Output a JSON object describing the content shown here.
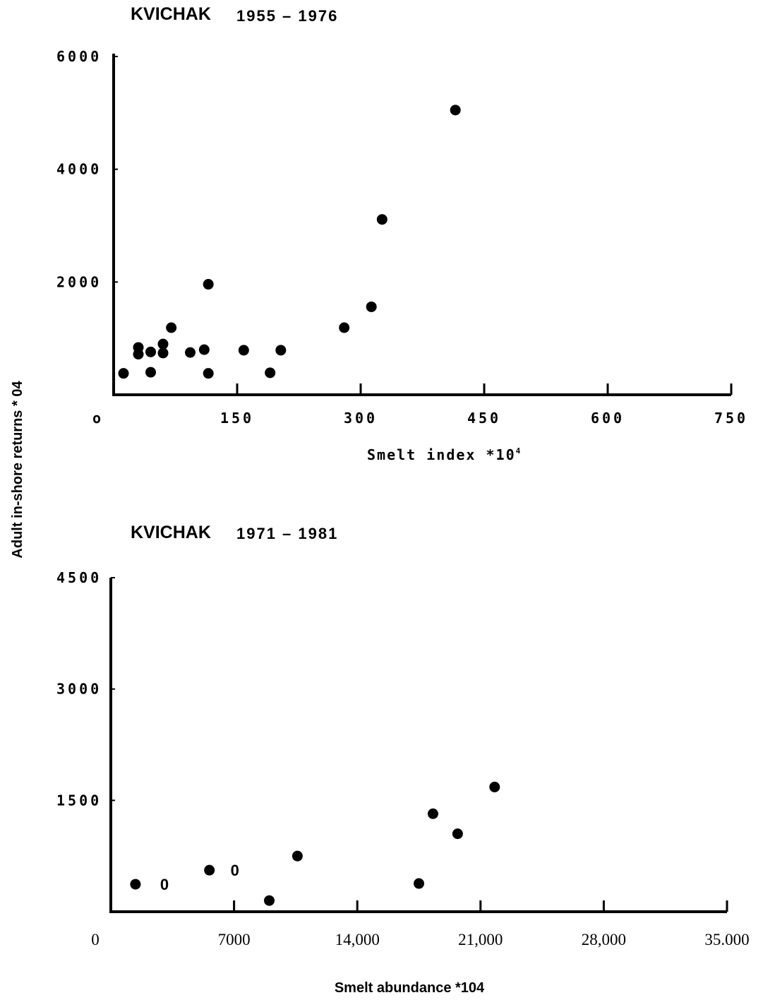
{
  "chart_data": [
    {
      "type": "scatter",
      "title": "KVICHAK",
      "subtitle": "1955 – 1976",
      "xlabel": "Smelt index *10",
      "xlabel_sup": "4",
      "ylabel": "Adult in-shore returns * 04",
      "xlim": [
        0,
        750
      ],
      "ylim": [
        0,
        6000
      ],
      "x_ticks": [
        0,
        150,
        300,
        450,
        600,
        750
      ],
      "x_tick_labels": [
        "o",
        "150",
        "300",
        "450",
        "600",
        "750"
      ],
      "y_ticks": [
        2000,
        4000,
        6000
      ],
      "y_tick_labels": [
        "2000",
        "4000",
        "6000"
      ],
      "grid": false,
      "points": [
        {
          "x": 12,
          "y": 380
        },
        {
          "x": 30,
          "y": 840
        },
        {
          "x": 30,
          "y": 720
        },
        {
          "x": 45,
          "y": 760
        },
        {
          "x": 45,
          "y": 400
        },
        {
          "x": 60,
          "y": 900
        },
        {
          "x": 60,
          "y": 740
        },
        {
          "x": 70,
          "y": 1190
        },
        {
          "x": 93,
          "y": 750
        },
        {
          "x": 110,
          "y": 800
        },
        {
          "x": 115,
          "y": 1960
        },
        {
          "x": 115,
          "y": 380
        },
        {
          "x": 158,
          "y": 790
        },
        {
          "x": 190,
          "y": 390
        },
        {
          "x": 203,
          "y": 790
        },
        {
          "x": 280,
          "y": 1190
        },
        {
          "x": 313,
          "y": 1560
        },
        {
          "x": 326,
          "y": 3110
        },
        {
          "x": 415,
          "y": 5050
        }
      ]
    },
    {
      "type": "scatter",
      "title": "KVICHAK",
      "subtitle": "1971 – 1981",
      "xlabel": "Smelt abundance *104",
      "ylabel": "Adult in-shore returns * 04",
      "xlim": [
        0,
        35000
      ],
      "ylim": [
        0,
        4500
      ],
      "x_ticks": [
        0,
        7000,
        14000,
        21000,
        28000,
        35000
      ],
      "x_tick_labels": [
        "0",
        "7000",
        "14,000",
        "21,000",
        "28,000",
        "35.000"
      ],
      "y_ticks": [
        1500,
        3000,
        4500
      ],
      "y_tick_labels": [
        "1500",
        "3000",
        "4500"
      ],
      "grid": false,
      "points": [
        {
          "x": 1400,
          "y": 370
        },
        {
          "x": 5600,
          "y": 560
        },
        {
          "x": 9000,
          "y": 150
        },
        {
          "x": 10600,
          "y": 750
        },
        {
          "x": 17500,
          "y": 380
        },
        {
          "x": 18300,
          "y": 1320
        },
        {
          "x": 19700,
          "y": 1050
        },
        {
          "x": 21800,
          "y": 1680
        }
      ],
      "annotations": [
        {
          "text": "0",
          "x": 2800,
          "y": 370
        },
        {
          "text": "0",
          "x": 6800,
          "y": 560
        }
      ]
    }
  ]
}
